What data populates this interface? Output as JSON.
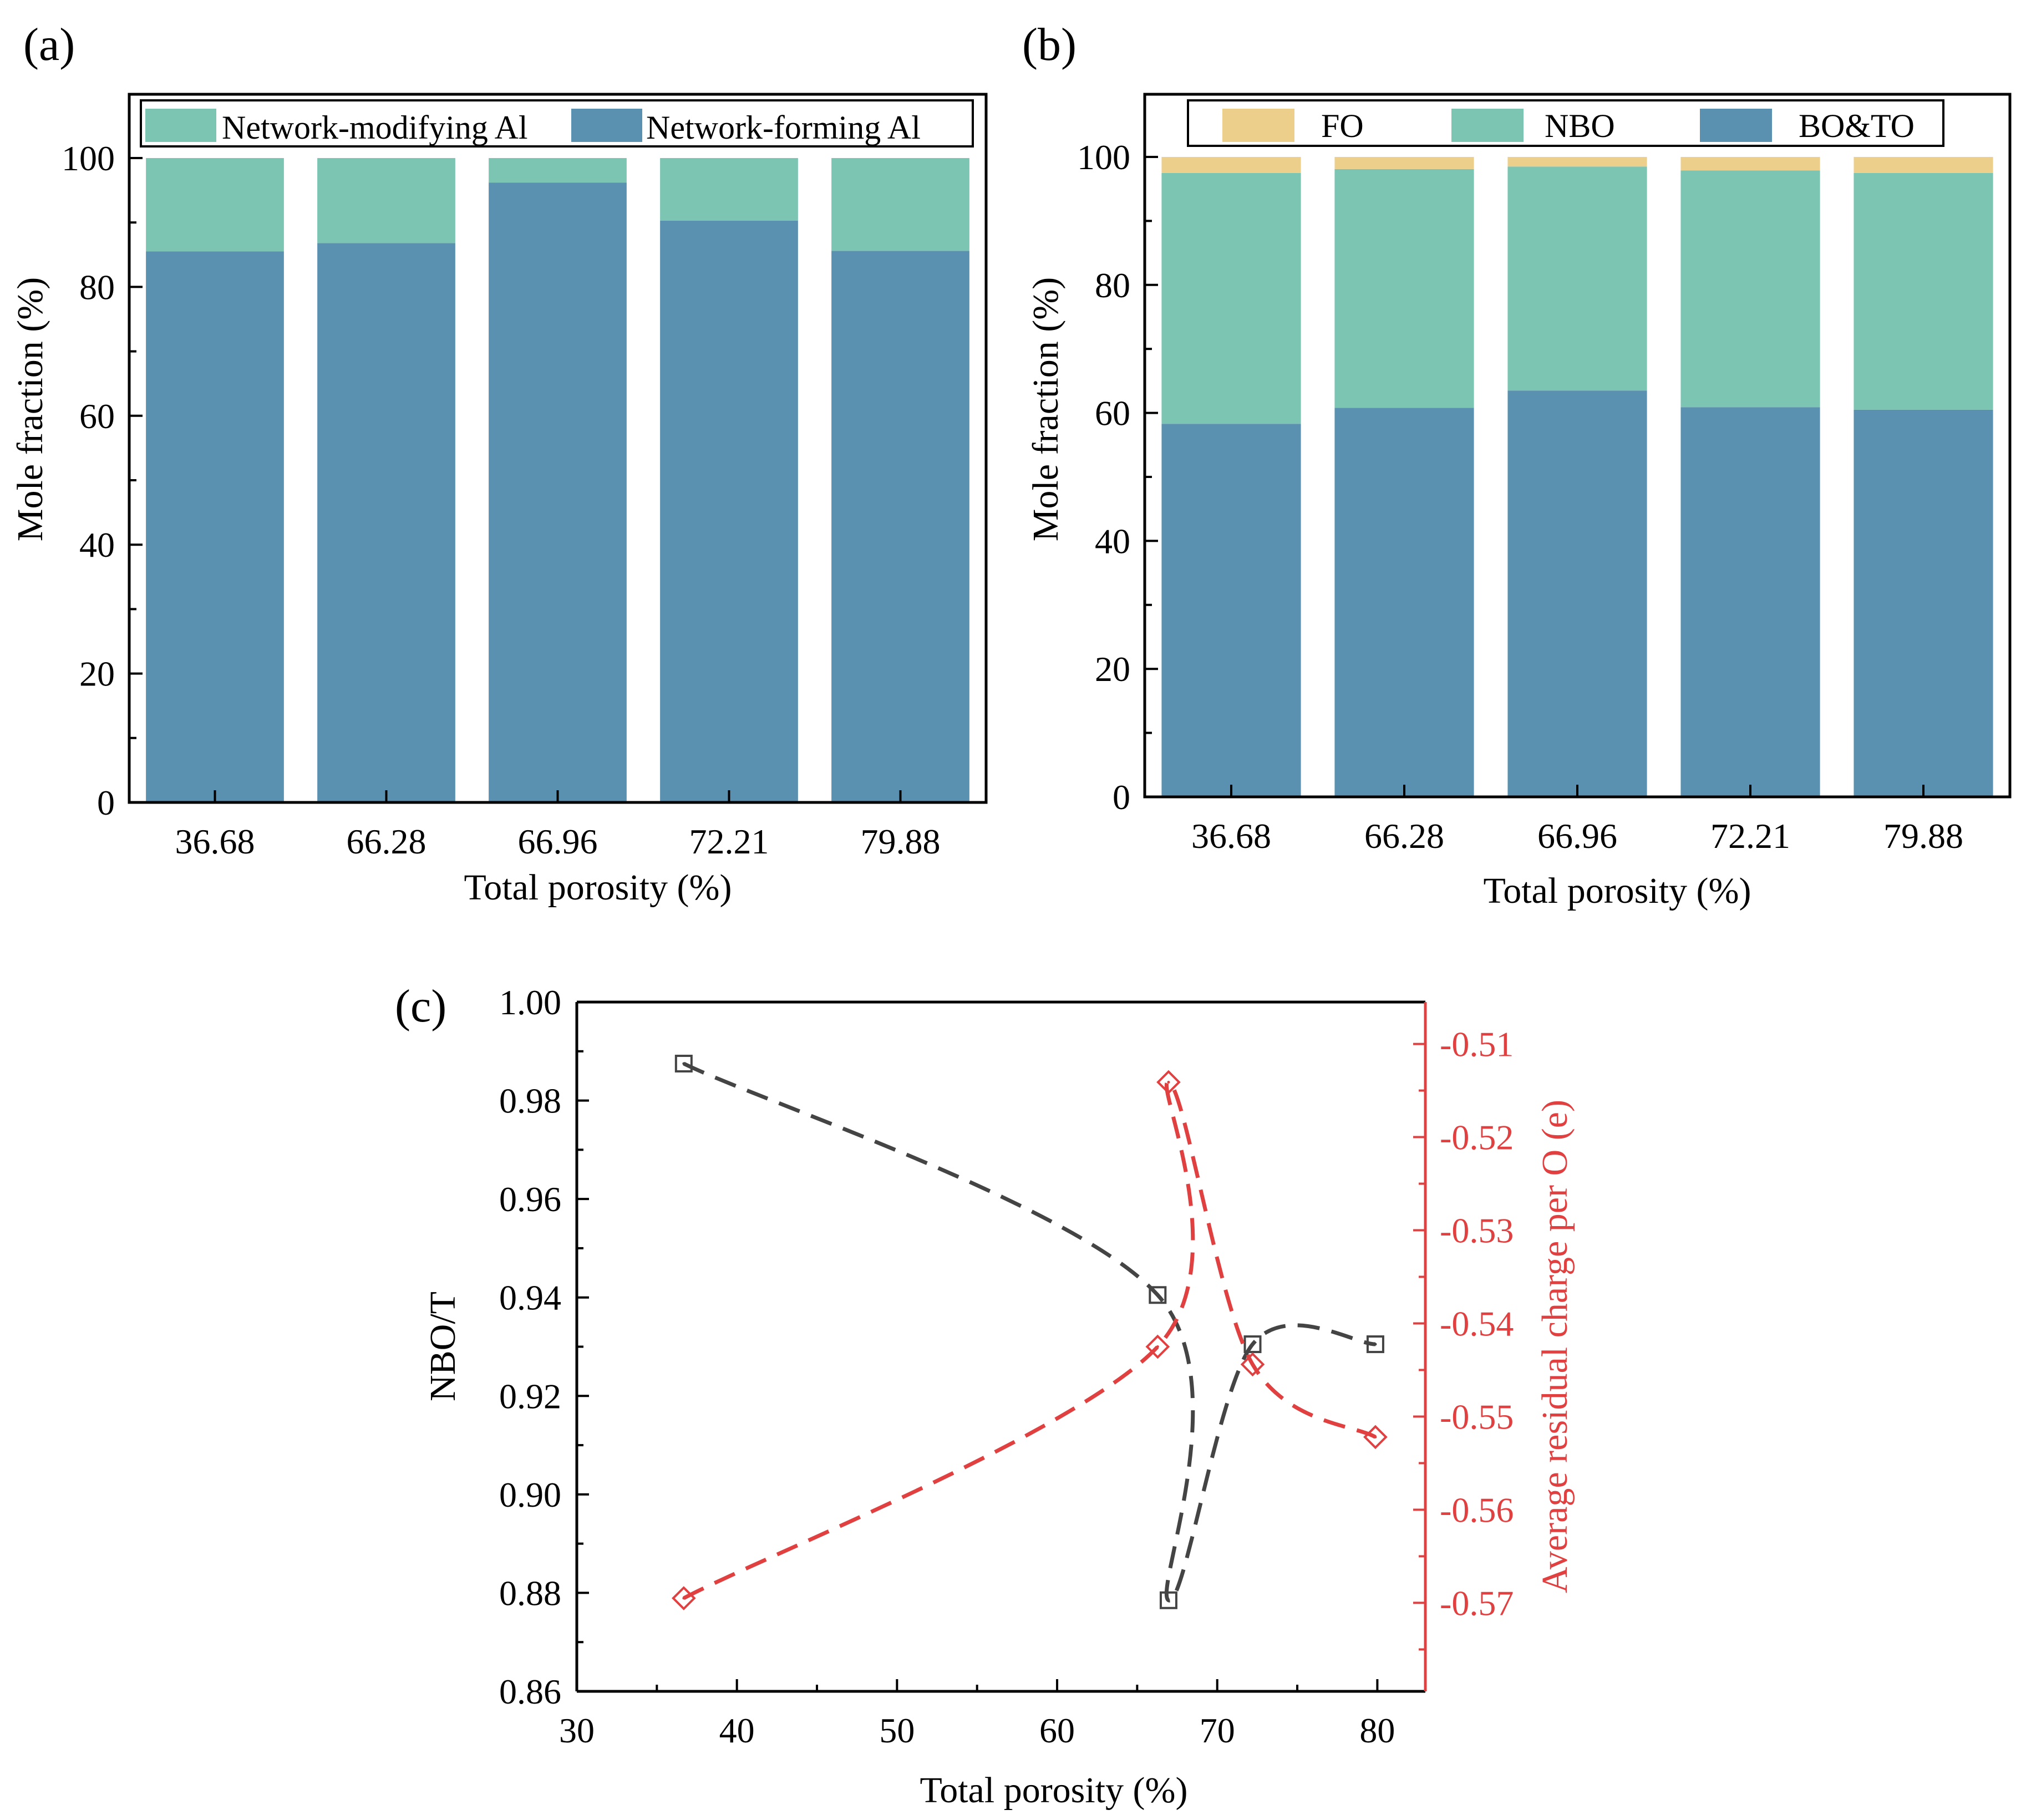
{
  "chart_data": [
    {
      "panel": "(a)",
      "type": "bar",
      "stacked": true,
      "categories": [
        "36.68",
        "66.28",
        "66.96",
        "72.21",
        "79.88"
      ],
      "series": [
        {
          "name": "Network-forming Al",
          "values": [
            85.5,
            86.8,
            96.2,
            90.3,
            85.6
          ],
          "color": "#5b91b0"
        },
        {
          "name": "Network-modifying Al",
          "values": [
            14.5,
            13.2,
            3.8,
            9.7,
            14.4
          ],
          "color": "#7bc5b2"
        }
      ],
      "legend_order": [
        "Network-modifying Al",
        "Network-forming Al"
      ],
      "xlabel": "Total porosity (%)",
      "ylabel": "Mole fraction (%)",
      "ylim": [
        0,
        100
      ],
      "yticks": [
        "0",
        "20",
        "40",
        "60",
        "80",
        "100"
      ],
      "legend_position": "top"
    },
    {
      "panel": "(b)",
      "type": "bar",
      "stacked": true,
      "categories": [
        "36.68",
        "66.28",
        "66.96",
        "72.21",
        "79.88"
      ],
      "series": [
        {
          "name": "BO&TO",
          "values": [
            58.3,
            60.8,
            63.5,
            60.9,
            60.5
          ],
          "color": "#5b91b0"
        },
        {
          "name": "NBO",
          "values": [
            39.2,
            37.3,
            35.0,
            37.0,
            37.0
          ],
          "color": "#7bc5b2"
        },
        {
          "name": "FO",
          "values": [
            2.5,
            1.9,
            1.5,
            2.1,
            2.5
          ],
          "color": "#edcf8c"
        }
      ],
      "legend_order": [
        "FO",
        "NBO",
        "BO&TO"
      ],
      "xlabel": "Total porosity (%)",
      "ylabel": "Mole fraction (%)",
      "ylim": [
        0,
        100
      ],
      "yticks": [
        "0",
        "20",
        "40",
        "60",
        "80",
        "100"
      ],
      "legend_position": "top"
    },
    {
      "panel": "(c)",
      "type": "scatter",
      "xlabel": "Total porosity (%)",
      "xlim": [
        30,
        83
      ],
      "xticks": [
        "30",
        "40",
        "50",
        "60",
        "70",
        "80"
      ],
      "ylabel_left": "NBO/T",
      "ylim_left": [
        0.86,
        1.0
      ],
      "yticks_left": [
        "0.86",
        "0.88",
        "0.90",
        "0.92",
        "0.94",
        "0.96",
        "0.98",
        "1.00"
      ],
      "ylabel_right": "Average residual charge per O (e)",
      "ylim_right": [
        -0.5795,
        -0.5055
      ],
      "yticks_right": [
        "-0.51",
        "-0.52",
        "-0.53",
        "-0.54",
        "-0.55",
        "-0.56",
        "-0.57"
      ],
      "series": [
        {
          "name": "NBO/T",
          "axis": "left",
          "marker": "square",
          "line": "dashed",
          "color": "#444444",
          "x": [
            36.68,
            66.28,
            66.96,
            72.21,
            79.88
          ],
          "y": [
            0.9875,
            0.9405,
            0.8785,
            0.9305,
            0.9305
          ]
        },
        {
          "name": "Average residual charge per O",
          "axis": "right",
          "marker": "diamond",
          "line": "dashed",
          "color": "#e04040",
          "x": [
            36.68,
            66.28,
            66.96,
            72.21,
            79.88
          ],
          "y": [
            -0.5695,
            -0.5425,
            -0.5141,
            -0.5444,
            -0.5522
          ]
        }
      ]
    }
  ]
}
